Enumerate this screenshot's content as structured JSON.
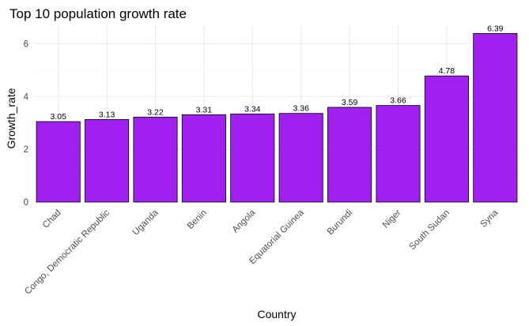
{
  "chart_data": {
    "type": "bar",
    "title": "Top 10 population growth rate",
    "xlabel": "Country",
    "ylabel": "Growth_rate",
    "categories": [
      "Chad",
      "Congo, Democratic Republic",
      "Uganda",
      "Benin",
      "Angola",
      "Equatorial Guinea",
      "Burundi",
      "Niger",
      "South Sudan",
      "Syria"
    ],
    "values": [
      3.05,
      3.13,
      3.22,
      3.31,
      3.34,
      3.36,
      3.59,
      3.66,
      4.78,
      6.39
    ],
    "data_labels": [
      "3.05",
      "3.13",
      "3.22",
      "3.31",
      "3.34",
      "3.36",
      "3.59",
      "3.66",
      "4.78",
      "6.39"
    ],
    "y_ticks": [
      0,
      2,
      4,
      6
    ],
    "ylim": [
      0,
      6.7
    ],
    "grid": true,
    "legend": "none",
    "bar_color": "#a020f0"
  }
}
